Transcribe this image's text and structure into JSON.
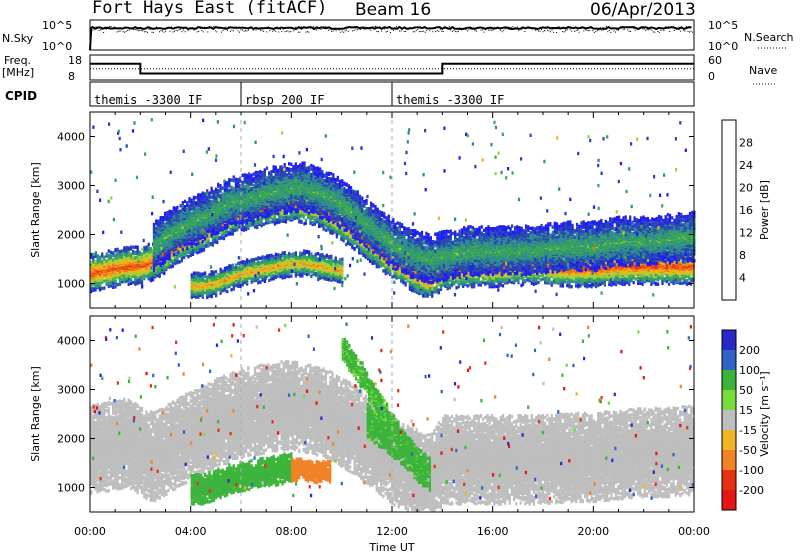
{
  "header": {
    "station": "Fort Hays East (fitACF)",
    "beam": "Beam 16",
    "date": "06/Apr/2013"
  },
  "sky_panel": {
    "label": "N.Sky",
    "left_ticks": [
      "10^5",
      "10^0"
    ],
    "right_ticks": [
      "10^5",
      "10^0"
    ],
    "right_label": "N.Search"
  },
  "freq_panel": {
    "label_top": "Freq.",
    "label_bottom": "[MHz]",
    "left_ticks": [
      "18",
      "8"
    ],
    "right_ticks": [
      "60",
      "0"
    ],
    "right_label": "Nave",
    "freq_steps": [
      {
        "from": 0,
        "to": 2,
        "value": 14.5
      },
      {
        "from": 2,
        "to": 14,
        "value": 10.6
      },
      {
        "from": 14,
        "to": 24,
        "value": 14.5
      }
    ],
    "nave_level": 27
  },
  "cpid": {
    "label": "CPID",
    "segments": [
      {
        "start": 0,
        "end": 6,
        "name": "themis -3300 IF"
      },
      {
        "start": 6,
        "end": 12,
        "name": "rbsp 200 IF"
      },
      {
        "start": 12,
        "end": 24,
        "name": "themis -3300 IF"
      }
    ]
  },
  "chart_data": [
    {
      "type": "heatmap",
      "panel": "power",
      "ylabel": "Slant Range [km]",
      "xlabel": "",
      "xlim": [
        0,
        24
      ],
      "ylim": [
        500,
        4500
      ],
      "yticks": [
        1000,
        2000,
        3000,
        4000
      ],
      "colorbar": {
        "label": "Power [dB]",
        "levels": [
          0,
          4,
          8,
          12,
          16,
          20,
          24,
          28,
          32
        ],
        "tick_labels": [
          "4",
          "8",
          "12",
          "16",
          "20",
          "24",
          "28"
        ],
        "colors": [
          "#1e1ef0",
          "#2846b4",
          "#2e8c8c",
          "#3caa50",
          "#a0d23c",
          "#f0b41e",
          "#f07814",
          "#e63214"
        ]
      },
      "bands": [
        {
          "x": [
            0,
            0.5,
            1,
            1.5,
            2,
            2.5,
            3,
            3.5,
            4,
            4.5,
            5,
            5.5,
            6,
            6.5,
            7,
            7.5,
            8,
            8.5,
            9,
            9.5,
            10,
            10.5,
            11,
            11.5,
            12,
            12.5,
            13,
            13.5,
            14,
            15,
            16,
            17,
            18,
            19,
            20,
            21,
            22,
            23,
            24
          ],
          "y": [
            1250,
            1300,
            1350,
            1400,
            1400,
            1500,
            1650,
            1850,
            2000,
            2100,
            2250,
            2400,
            2500,
            2550,
            2600,
            2650,
            2700,
            2650,
            2600,
            2450,
            2300,
            2100,
            1900,
            1700,
            1500,
            1350,
            1200,
            1100,
            1300,
            1350,
            1350,
            1400,
            1400,
            1350,
            1350,
            1400,
            1400,
            1400,
            1400
          ],
          "width": 380,
          "peak": 29
        },
        {
          "x": [
            2.5,
            3,
            3.5,
            4,
            4.5,
            5,
            5.5,
            6,
            6.5,
            7,
            7.5,
            8,
            8.5,
            9,
            9.5,
            10,
            10.5,
            11,
            11.5,
            12,
            12.5,
            13,
            13.5,
            14,
            15,
            16,
            17,
            18,
            19,
            20,
            21,
            22,
            23,
            24
          ],
          "y": [
            1800,
            2000,
            2150,
            2300,
            2400,
            2550,
            2700,
            2750,
            2800,
            2900,
            2950,
            3000,
            3000,
            2900,
            2800,
            2650,
            2450,
            2250,
            2050,
            1850,
            1700,
            1600,
            1550,
            1600,
            1700,
            1700,
            1700,
            1750,
            1800,
            1800,
            1900,
            1900,
            1950,
            2000
          ],
          "width": 500,
          "peak": 14
        },
        {
          "x": [
            4,
            4.5,
            5,
            5.5,
            6,
            6.5,
            7,
            7.5,
            8,
            8.5,
            9,
            9.5,
            10
          ],
          "y": [
            1000,
            1000,
            1050,
            1150,
            1250,
            1300,
            1350,
            1400,
            1450,
            1450,
            1400,
            1350,
            1300
          ],
          "width": 260,
          "peak": 24
        }
      ]
    },
    {
      "type": "heatmap",
      "panel": "velocity",
      "ylabel": "Slant Range [km]",
      "xlabel": "Time UT",
      "xlim": [
        0,
        24
      ],
      "ylim": [
        500,
        4500
      ],
      "yticks": [
        1000,
        2000,
        3000,
        4000
      ],
      "xticks": [
        "00:00",
        "04:00",
        "08:00",
        "12:00",
        "16:00",
        "20:00",
        "00:00"
      ],
      "xtick_values": [
        0,
        4,
        8,
        12,
        16,
        20,
        24
      ],
      "colorbar": {
        "label": "Velocity [m s⁻¹]",
        "tick_labels": [
          "200",
          "100",
          "50",
          "15",
          "-15",
          "-50",
          "-100",
          "-200"
        ],
        "colors": [
          "#2828c8",
          "#3264c8",
          "#3cb43c",
          "#78dc3c",
          "#bebebe",
          "#f0b428",
          "#f08228",
          "#e63214",
          "#e61414"
        ]
      },
      "bands": [
        {
          "x": [
            0,
            0.5,
            1,
            1.5,
            2,
            2.5,
            3,
            3.5,
            4,
            4.5,
            5,
            5.5,
            6,
            6.5,
            7,
            7.5,
            8,
            8.5,
            9,
            9.5,
            10,
            10.5,
            11,
            11.5,
            12,
            12.5,
            13,
            13.5,
            14,
            15,
            16,
            17,
            18,
            19,
            20,
            21,
            22,
            23,
            24
          ],
          "y": [
            1800,
            1850,
            1900,
            1950,
            1750,
            1650,
            1800,
            1950,
            2100,
            2200,
            2350,
            2450,
            2550,
            2600,
            2650,
            2700,
            2700,
            2650,
            2600,
            2500,
            2350,
            2200,
            2000,
            1800,
            1600,
            1400,
            1300,
            1200,
            1600,
            1600,
            1600,
            1600,
            1600,
            1650,
            1650,
            1700,
            1750,
            1750,
            1800
          ],
          "width": 900,
          "velocity": 0
        },
        {
          "x": [
            4,
            4.5,
            5,
            5.5,
            6,
            6.5,
            7,
            7.5,
            8
          ],
          "y": [
            1000,
            1000,
            1100,
            1200,
            1250,
            1300,
            1350,
            1400,
            1450
          ],
          "width": 300,
          "velocity": 50
        },
        {
          "x": [
            8,
            8.5,
            9,
            9.5
          ],
          "y": [
            1400,
            1400,
            1350,
            1350
          ],
          "width": 220,
          "velocity": -50
        },
        {
          "x": [
            10,
            10.5,
            11,
            11.5,
            12,
            12.5,
            13
          ],
          "y": [
            3900,
            3500,
            3100,
            2700,
            2300,
            1900,
            1500
          ],
          "width": 260,
          "velocity": 40
        },
        {
          "x": [
            11,
            11.5,
            12,
            12.5,
            13,
            13.5
          ],
          "y": [
            2400,
            2200,
            2000,
            1800,
            1500,
            1300
          ],
          "width": 350,
          "velocity": 45
        }
      ]
    }
  ]
}
